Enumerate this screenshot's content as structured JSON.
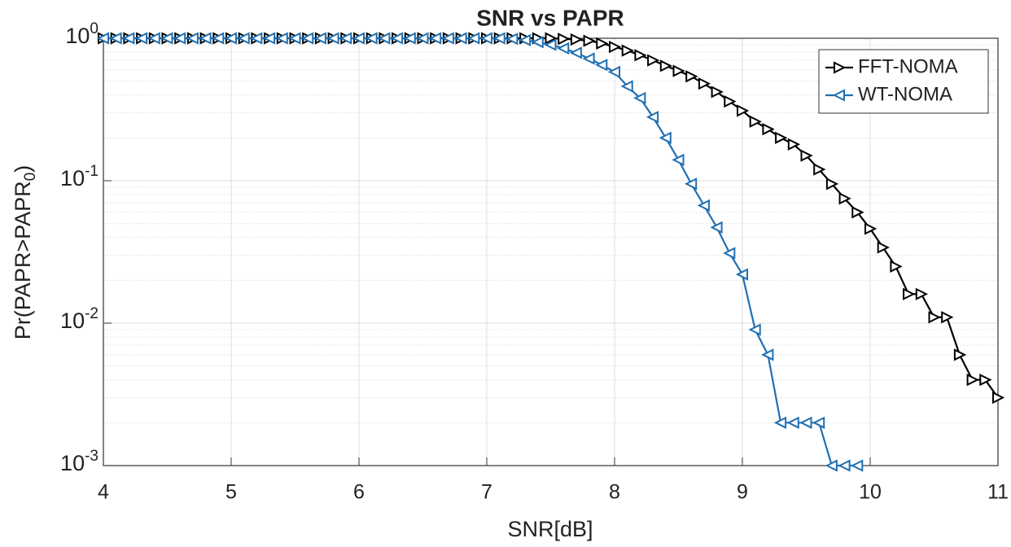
{
  "chart_data": {
    "type": "line",
    "title": "SNR vs PAPR",
    "xlabel": "SNR[dB]",
    "ylabel": {
      "text": "Pr(PAPR>PAPR",
      "sub": "0",
      "end": ")"
    },
    "log_y": true,
    "grid": true,
    "legend": "top-right",
    "xlim": [
      4,
      11
    ],
    "xticks": [
      4,
      5,
      6,
      7,
      8,
      9,
      10,
      11
    ],
    "ylim": [
      0.001,
      1
    ],
    "yticks": [
      {
        "value": 0.001,
        "label": "10",
        "exponent": "-3"
      },
      {
        "value": 0.01,
        "label": "10",
        "exponent": "-2"
      },
      {
        "value": 0.1,
        "label": "10",
        "exponent": "-1"
      },
      {
        "value": 1,
        "label": "10",
        "exponent": "0"
      }
    ],
    "yminorticks": [
      0.002,
      0.003,
      0.004,
      0.005,
      0.006,
      0.007,
      0.008,
      0.009,
      0.02,
      0.03,
      0.04,
      0.05,
      0.06,
      0.07,
      0.08,
      0.09,
      0.2,
      0.3,
      0.4,
      0.5,
      0.6,
      0.7,
      0.8,
      0.9
    ],
    "series": [
      {
        "name": "FFT-NOMA",
        "color": "#000000",
        "marker": "triangle-right",
        "x": [
          4.0,
          4.1,
          4.2,
          4.3,
          4.4,
          4.5,
          4.6,
          4.7,
          4.8,
          4.9,
          5.0,
          5.1,
          5.2,
          5.3,
          5.4,
          5.5,
          5.6,
          5.7,
          5.8,
          5.9,
          6.0,
          6.1,
          6.2,
          6.3,
          6.4,
          6.5,
          6.6,
          6.7,
          6.8,
          6.9,
          7.0,
          7.1,
          7.2,
          7.3,
          7.4,
          7.5,
          7.6,
          7.7,
          7.8,
          7.9,
          8.0,
          8.1,
          8.2,
          8.3,
          8.4,
          8.5,
          8.6,
          8.7,
          8.8,
          8.9,
          9.0,
          9.1,
          9.2,
          9.3,
          9.4,
          9.5,
          9.6,
          9.7,
          9.8,
          9.9,
          10.0,
          10.1,
          10.2,
          10.3,
          10.4,
          10.5,
          10.6,
          10.7,
          10.8,
          10.9,
          11.0
        ],
        "values": [
          1,
          1,
          1,
          1,
          1,
          1,
          1,
          1,
          1,
          1,
          1,
          1,
          1,
          1,
          1,
          1,
          1,
          1,
          1,
          1,
          1,
          1,
          1,
          1,
          1,
          1,
          1,
          1,
          1,
          1,
          1,
          1,
          1,
          1,
          1,
          1,
          0.99,
          0.98,
          0.96,
          0.92,
          0.87,
          0.82,
          0.76,
          0.7,
          0.64,
          0.59,
          0.54,
          0.48,
          0.42,
          0.36,
          0.31,
          0.26,
          0.23,
          0.2,
          0.18,
          0.15,
          0.12,
          0.095,
          0.075,
          0.06,
          0.046,
          0.034,
          0.025,
          0.016,
          0.016,
          0.011,
          0.011,
          0.006,
          0.004,
          0.004,
          0.003
        ]
      },
      {
        "name": "WT-NOMA",
        "color": "#1f6fb2",
        "marker": "triangle-left",
        "x": [
          4.0,
          4.1,
          4.2,
          4.3,
          4.4,
          4.5,
          4.6,
          4.7,
          4.8,
          4.9,
          5.0,
          5.1,
          5.2,
          5.3,
          5.4,
          5.5,
          5.6,
          5.7,
          5.8,
          5.9,
          6.0,
          6.1,
          6.2,
          6.3,
          6.4,
          6.5,
          6.6,
          6.7,
          6.8,
          6.9,
          7.0,
          7.1,
          7.2,
          7.3,
          7.4,
          7.5,
          7.6,
          7.7,
          7.8,
          7.9,
          8.0,
          8.1,
          8.2,
          8.3,
          8.4,
          8.5,
          8.6,
          8.7,
          8.8,
          8.9,
          9.0,
          9.1,
          9.2,
          9.3,
          9.4,
          9.5,
          9.6,
          9.7,
          9.8,
          9.9
        ],
        "values": [
          1,
          1,
          1,
          1,
          1,
          1,
          1,
          1,
          1,
          1,
          1,
          1,
          1,
          1,
          1,
          1,
          1,
          1,
          1,
          1,
          1,
          1,
          1,
          1,
          1,
          1,
          1,
          1,
          1,
          1,
          1,
          1,
          0.99,
          0.97,
          0.94,
          0.9,
          0.85,
          0.79,
          0.72,
          0.65,
          0.58,
          0.46,
          0.38,
          0.28,
          0.2,
          0.14,
          0.095,
          0.067,
          0.047,
          0.031,
          0.022,
          0.009,
          0.006,
          0.002,
          0.002,
          0.002,
          0.002,
          0.001,
          0.001,
          0.001
        ]
      }
    ]
  }
}
